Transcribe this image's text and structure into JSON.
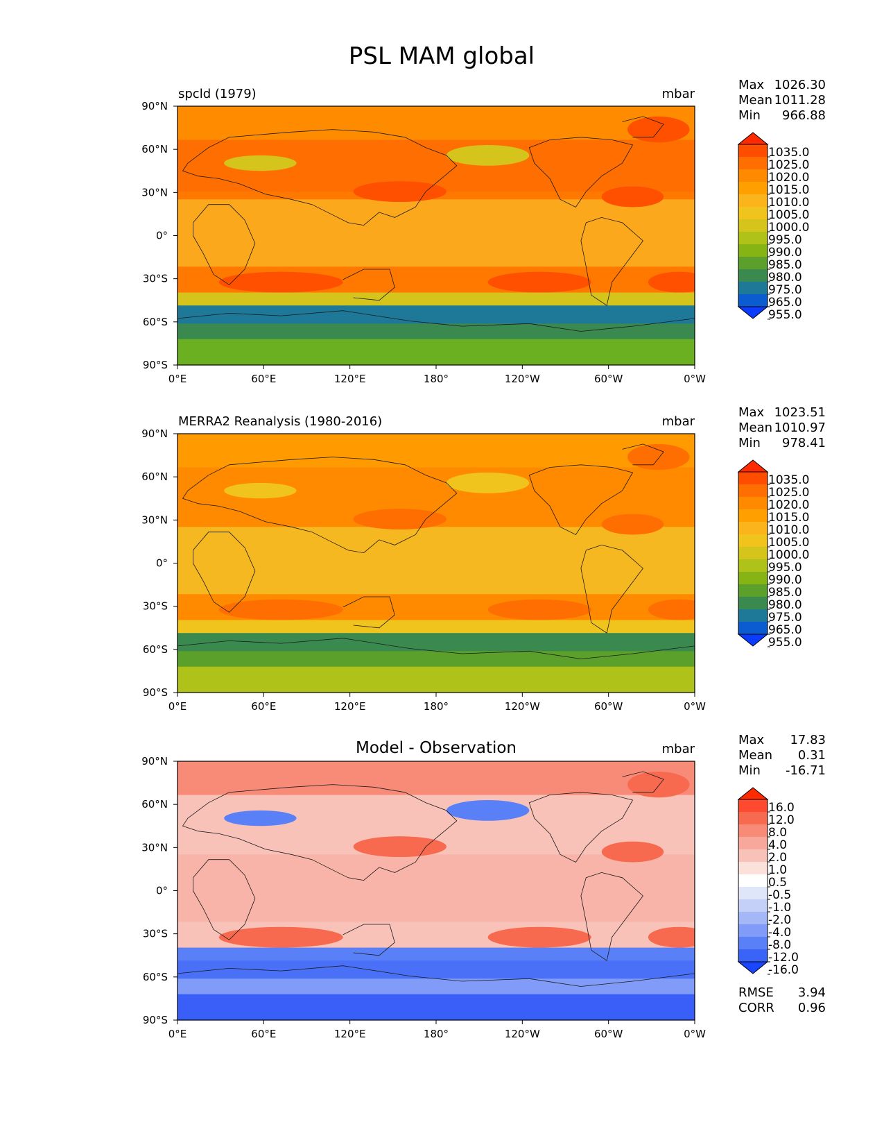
{
  "figure": {
    "title": "PSL MAM global",
    "x_ticks": [
      "0°E",
      "60°E",
      "120°E",
      "180°",
      "120°W",
      "60°W",
      "0°W"
    ],
    "y_ticks": [
      "90°N",
      "60°N",
      "30°N",
      "0°",
      "30°S",
      "60°S",
      "90°S"
    ],
    "stat_labels": {
      "max": "Max",
      "mean": "Mean",
      "min": "Min",
      "rmse": "RMSE",
      "corr": "CORR"
    }
  },
  "panels": [
    {
      "id": "model",
      "left_label": "spcld (1979)",
      "center_label": "",
      "units": "mbar",
      "stats": {
        "max": "1026.30",
        "mean": "1011.28",
        "min": "966.88"
      },
      "colorbar": {
        "labels": [
          "1035.0",
          "1025.0",
          "1020.0",
          "1015.0",
          "1010.0",
          "1005.0",
          "1000.0",
          "995.0",
          "990.0",
          "985.0",
          "980.0",
          "975.0",
          "965.0",
          "955.0"
        ],
        "colors": [
          "#ff2a00",
          "#ff4d00",
          "#ff6e00",
          "#ff8a00",
          "#ffa000",
          "#fbb41c",
          "#f0c41c",
          "#d4c41c",
          "#aec21a",
          "#86b414",
          "#5aa02a",
          "#3a8a50",
          "#1e7898",
          "#0a5cd0",
          "#0a3cff"
        ]
      },
      "field_colors": {
        "pole_north": "#ff8c00",
        "mid_high": "#ff6e00",
        "subtropic_belt": "#ff7800",
        "tropics": "#fca81c",
        "ocean_low": "#1e7898",
        "ocean_low2": "#3a8a50",
        "antarctic": "#6ab020",
        "highs": "#ff5000",
        "lows": "#d4c41c"
      }
    },
    {
      "id": "obs",
      "left_label": "MERRA2 Reanalysis (1980-2016)",
      "center_label": "",
      "units": "mbar",
      "stats": {
        "max": "1023.51",
        "mean": "1010.97",
        "min": "978.41"
      },
      "colorbar": {
        "labels": [
          "1035.0",
          "1025.0",
          "1020.0",
          "1015.0",
          "1010.0",
          "1005.0",
          "1000.0",
          "995.0",
          "990.0",
          "985.0",
          "980.0",
          "975.0",
          "965.0",
          "955.0"
        ],
        "colors": [
          "#ff2a00",
          "#ff4d00",
          "#ff6e00",
          "#ff8a00",
          "#ffa000",
          "#fbb41c",
          "#f0c41c",
          "#d4c41c",
          "#aec21a",
          "#86b414",
          "#5aa02a",
          "#3a8a50",
          "#1e7898",
          "#0a5cd0",
          "#0a3cff"
        ]
      },
      "field_colors": {
        "pole_north": "#ff9a00",
        "mid_high": "#ff8a00",
        "subtropic_belt": "#ff8a00",
        "tropics": "#f5b820",
        "ocean_low": "#3a8a50",
        "ocean_low2": "#5aa02a",
        "antarctic": "#aec21a",
        "highs": "#ff6e00",
        "lows": "#f0c41c"
      }
    },
    {
      "id": "diff",
      "left_label": "",
      "center_label": "Model - Observation",
      "units": "mbar",
      "stats": {
        "max": "17.83",
        "mean": "0.31",
        "min": "-16.71"
      },
      "rmse": "3.94",
      "corr": "0.96",
      "colorbar": {
        "labels": [
          "16.0",
          "12.0",
          "8.0",
          "4.0",
          "2.0",
          "1.0",
          "0.5",
          "-0.5",
          "-1.0",
          "-2.0",
          "-4.0",
          "-8.0",
          "-12.0",
          "-16.0"
        ],
        "colors": [
          "#ff2a00",
          "#ff4a30",
          "#f86a50",
          "#f88a78",
          "#f8a89a",
          "#f8c2b8",
          "#fce0da",
          "#ffffff",
          "#e0e6fa",
          "#c4d0f8",
          "#a4b8f8",
          "#809cf8",
          "#5a80f8",
          "#3a64f8",
          "#1a46ff"
        ]
      },
      "field_colors": {
        "pole_north": "#f88a78",
        "mid_high": "#f8c2b8",
        "subtropic_belt": "#f8c2b8",
        "tropics": "#f8b4a8",
        "ocean_low": "#4a70f8",
        "ocean_low2": "#809cf8",
        "antarctic": "#3a5ef8",
        "highs": "#f86a50",
        "lows": "#5a80f8"
      }
    }
  ]
}
